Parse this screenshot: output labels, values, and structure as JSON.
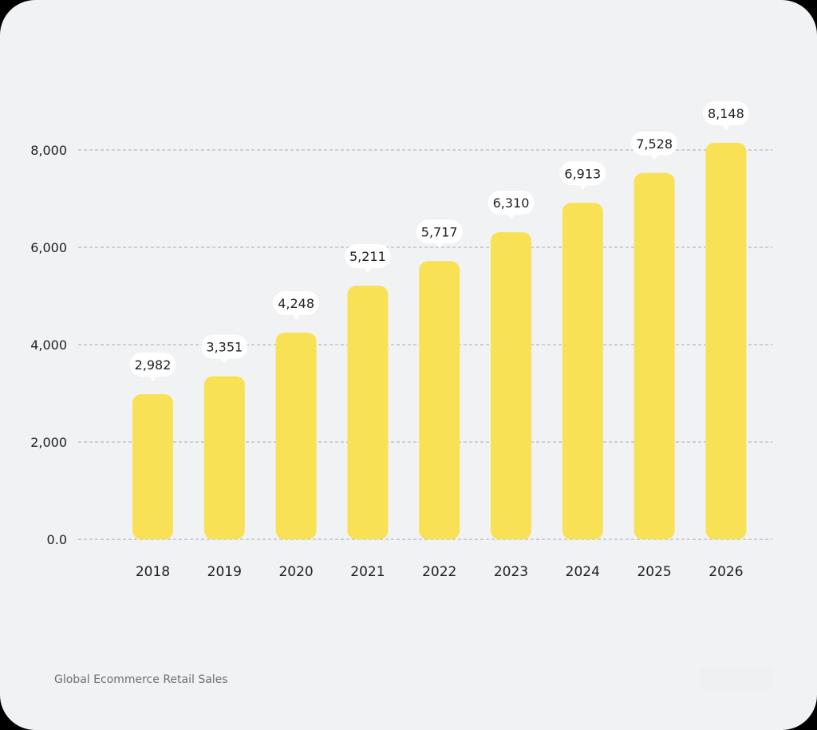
{
  "caption": "Global Ecommerce Retail Sales",
  "colors": {
    "background": "#f1f2f4",
    "bar": "#f9e155",
    "label_bg": "#ffffff",
    "grid": "#a9abb0",
    "text": "#1f1f1f"
  },
  "chart_data": {
    "type": "bar",
    "categories": [
      "2018",
      "2019",
      "2020",
      "2021",
      "2022",
      "2023",
      "2024",
      "2025",
      "2026"
    ],
    "values": [
      2982,
      3351,
      4248,
      5211,
      5717,
      6310,
      6913,
      7528,
      8148
    ],
    "value_labels": [
      "2,982",
      "3,351",
      "4,248",
      "5,211",
      "5,717",
      "6,310",
      "6,913",
      "7,528",
      "8,148"
    ],
    "yticks": [
      0,
      2000,
      4000,
      6000,
      8000
    ],
    "ytick_labels": [
      "0.0",
      "2,000",
      "4,000",
      "6,000",
      "8,000"
    ],
    "ylim": [
      0,
      8000
    ],
    "grid": true,
    "title": "",
    "xlabel": "",
    "ylabel": ""
  }
}
